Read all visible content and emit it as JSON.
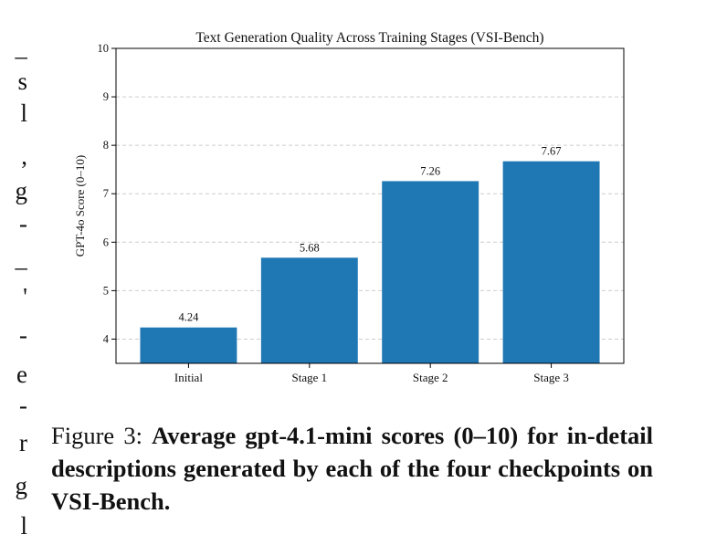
{
  "left_column_fragments": [
    "–",
    "s",
    "l",
    ",",
    "g",
    "-",
    "–",
    "'",
    "-",
    "e",
    "-",
    "r",
    "g",
    "l"
  ],
  "chart_data": {
    "type": "bar",
    "title": "Text Generation Quality Across Training Stages (VSI-Bench)",
    "xlabel": "",
    "ylabel": "GPT-4o Score (0–10)",
    "categories": [
      "Initial",
      "Stage 1",
      "Stage 2",
      "Stage 3"
    ],
    "values": [
      4.24,
      5.68,
      7.26,
      7.67
    ],
    "value_labels": [
      "4.24",
      "5.68",
      "7.26",
      "7.67"
    ],
    "ylim": [
      3.5,
      10
    ],
    "yticks": [
      4,
      5,
      6,
      7,
      8,
      9,
      10
    ],
    "grid": "horizontal dashed",
    "bar_color": "#1f77b4",
    "legend": "none"
  },
  "caption": {
    "label": "Figure 3: ",
    "text": "Average gpt-4.1-mini scores (0–10) for in-detail descriptions generated by each of the four checkpoints on VSI-Bench."
  }
}
